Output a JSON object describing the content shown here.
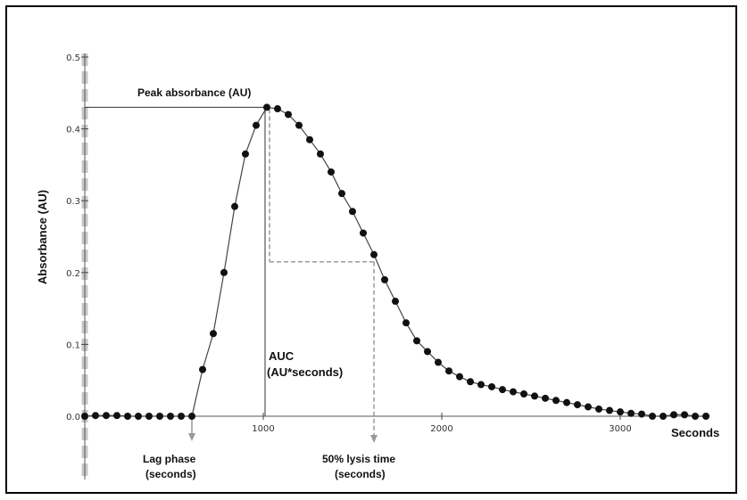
{
  "chart_data": {
    "type": "line",
    "xlabel": "Seconds",
    "ylabel": "Absorbance (AU)",
    "xlim": [
      0,
      3500
    ],
    "ylim": [
      0,
      0.5
    ],
    "x_ticks": [
      1000,
      2000,
      3000
    ],
    "y_ticks": [
      0.0,
      0.1,
      0.2,
      0.3,
      0.4,
      0.5
    ],
    "y_tick_labels": [
      "0.0",
      "0.1",
      "0.2",
      "0.3",
      "0.4",
      "0.5"
    ],
    "grid": false,
    "series": [
      {
        "marker": "circle",
        "color": "#111111",
        "x": [
          0,
          60,
          120,
          180,
          240,
          300,
          360,
          420,
          480,
          540,
          600,
          660,
          720,
          780,
          840,
          900,
          960,
          1020,
          1080,
          1140,
          1200,
          1260,
          1320,
          1380,
          1440,
          1500,
          1560,
          1620,
          1680,
          1740,
          1800,
          1860,
          1920,
          1980,
          2040,
          2100,
          2160,
          2220,
          2280,
          2340,
          2400,
          2460,
          2520,
          2580,
          2640,
          2700,
          2760,
          2820,
          2880,
          2940,
          3000,
          3060,
          3120,
          3180,
          3240,
          3300,
          3360,
          3420,
          3480
        ],
        "y": [
          0.0,
          0.001,
          0.001,
          0.001,
          0.0,
          0.0,
          0.0,
          0.0,
          0.0,
          0.0,
          0.0,
          0.065,
          0.115,
          0.2,
          0.292,
          0.365,
          0.405,
          0.43,
          0.428,
          0.42,
          0.405,
          0.385,
          0.365,
          0.34,
          0.31,
          0.285,
          0.255,
          0.225,
          0.19,
          0.16,
          0.13,
          0.105,
          0.09,
          0.075,
          0.063,
          0.055,
          0.048,
          0.044,
          0.041,
          0.037,
          0.034,
          0.031,
          0.028,
          0.025,
          0.022,
          0.019,
          0.016,
          0.013,
          0.01,
          0.008,
          0.006,
          0.004,
          0.003,
          0.0,
          0.0,
          0.002,
          0.002,
          0.0,
          0.0
        ]
      }
    ],
    "peak": {
      "x": 1020,
      "y": 0.43
    },
    "half_lysis": {
      "x": 1620,
      "y": 0.215
    },
    "lag_x": 600,
    "annotations": {
      "peak_absorbance": "Peak absorbance (AU)",
      "auc_line1": "AUC",
      "auc_line2": "(AU*seconds)",
      "lag_line1": "Lag phase",
      "lag_line2": "(seconds)",
      "lysis_line1": "50% lysis time",
      "lysis_line2": "(seconds)"
    }
  }
}
